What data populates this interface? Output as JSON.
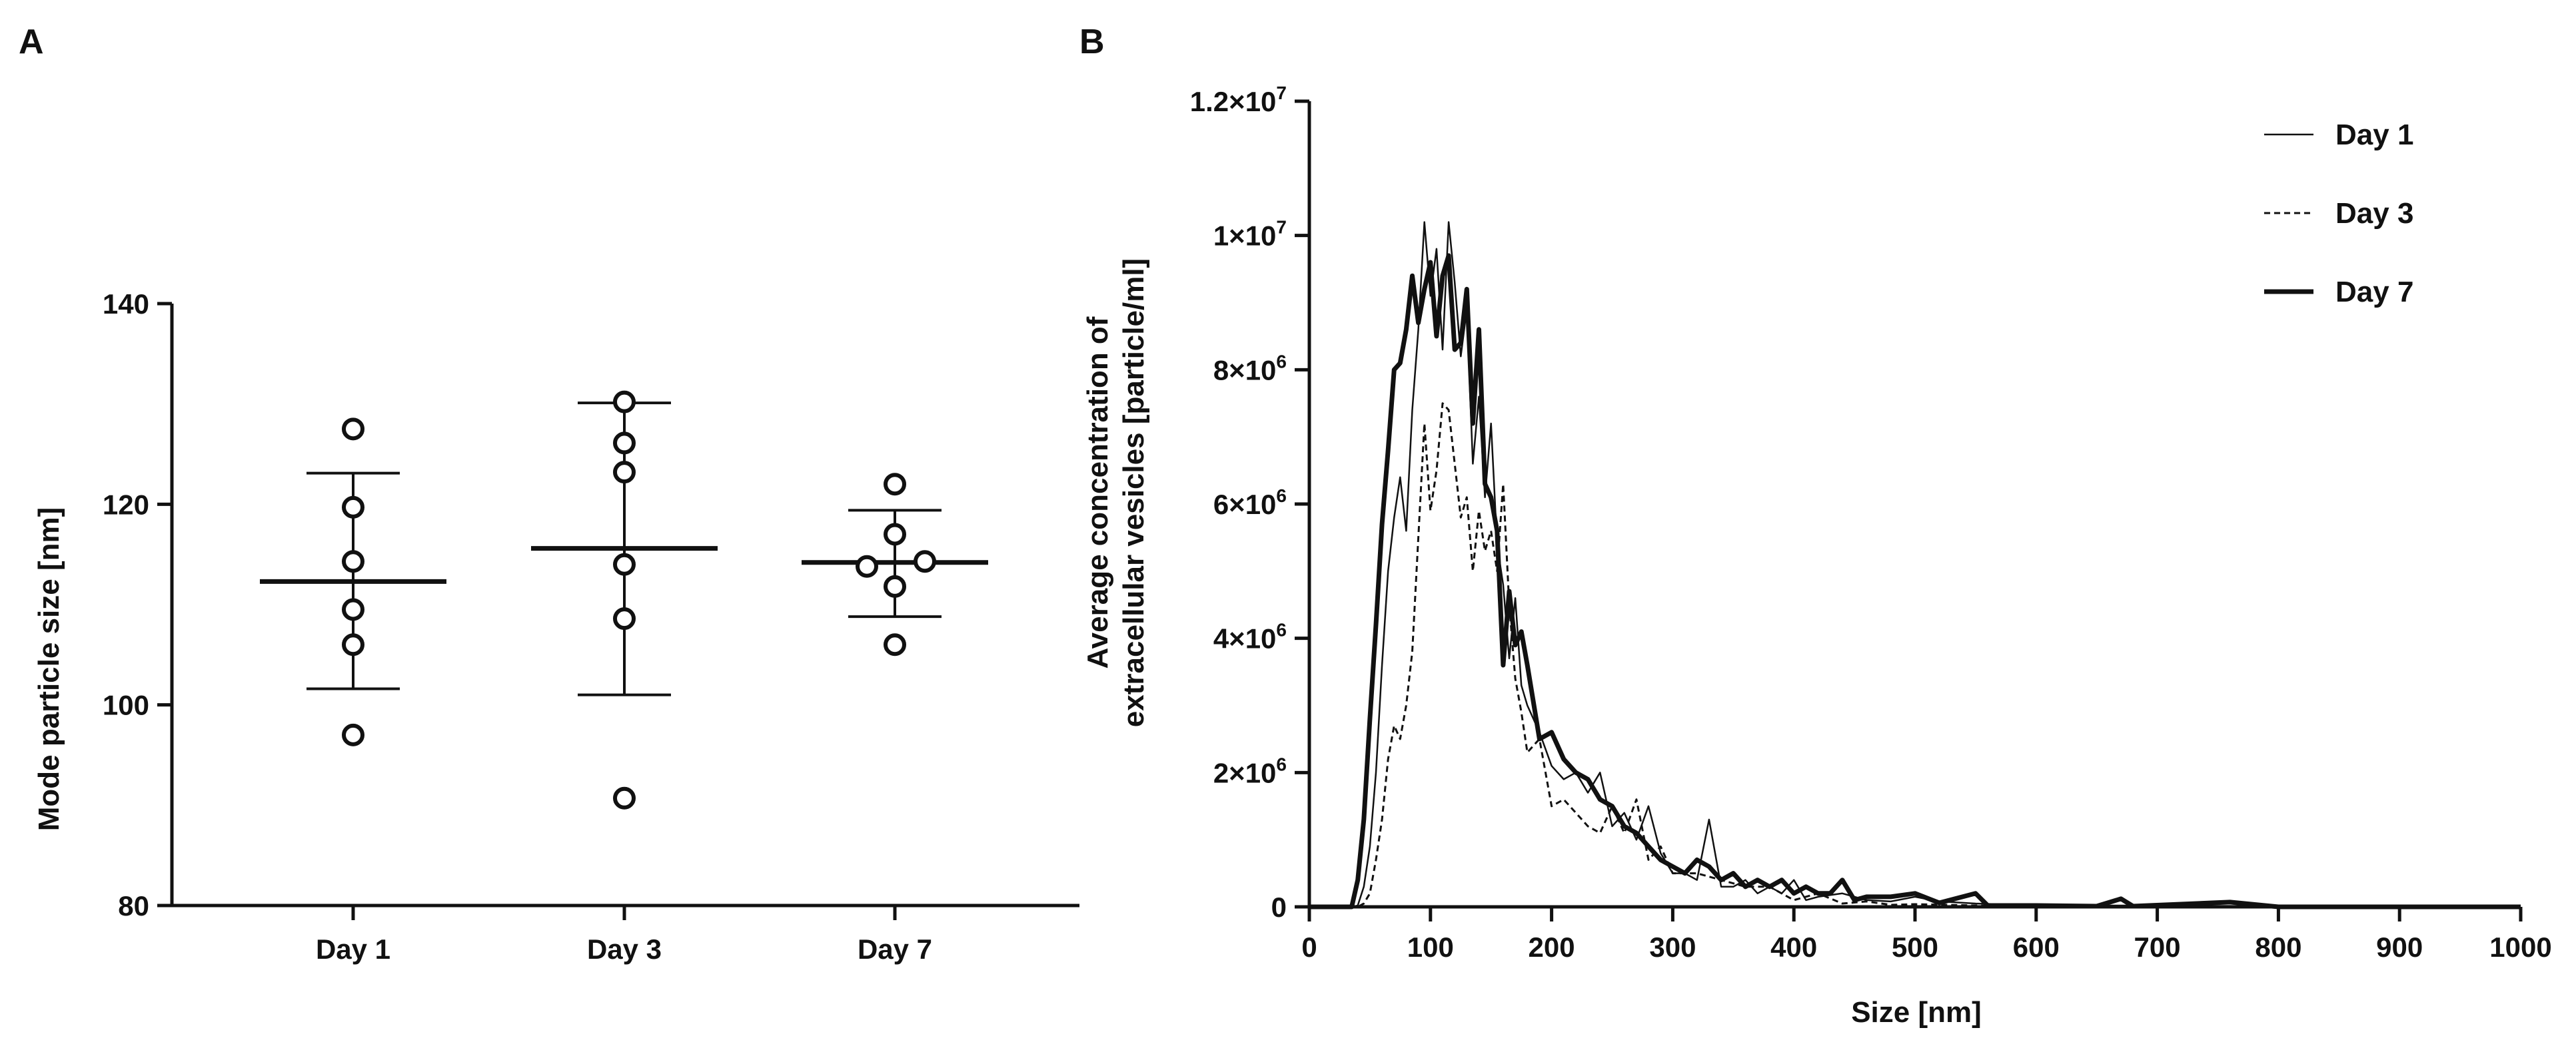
{
  "panel_labels": {
    "a": "A",
    "b": "B"
  },
  "chart_data": [
    {
      "type": "scatter",
      "panel": "A",
      "title": "",
      "xlabel": "",
      "ylabel": "Mode particle size [nm]",
      "ylim": [
        80,
        140
      ],
      "yticks": [
        "80",
        "100",
        "120",
        "140"
      ],
      "categories": [
        "Day 1",
        "Day 3",
        "Day 7"
      ],
      "series": [
        {
          "name": "Day 1",
          "points": [
            127.5,
            119.7,
            114.3,
            109.5,
            106.0,
            97.0
          ],
          "mean": 112.3,
          "sd_low": 101.6,
          "sd_high": 123.1
        },
        {
          "name": "Day 3",
          "points": [
            130.2,
            126.1,
            123.2,
            114.0,
            108.6,
            90.7
          ],
          "mean": 115.6,
          "sd_low": 101.0,
          "sd_high": 130.1
        },
        {
          "name": "Day 7",
          "points": [
            122.0,
            117.0,
            114.3,
            113.8,
            111.8,
            106.0
          ],
          "mean": 114.2,
          "sd_low": 108.8,
          "sd_high": 119.4
        }
      ]
    },
    {
      "type": "line",
      "panel": "B",
      "title": "",
      "xlabel": "Size [nm]",
      "ylabel_line1": "Average concentration of",
      "ylabel_line2": "extracellular vesicles [particle/ml]",
      "xlim": [
        0,
        1000
      ],
      "ylim": [
        0,
        12000000
      ],
      "xticks": [
        "0",
        "100",
        "200",
        "300",
        "400",
        "500",
        "600",
        "700",
        "800",
        "900",
        "1000"
      ],
      "yticks": [
        {
          "value": 0,
          "mantissa": "0",
          "exponent": ""
        },
        {
          "value": 2000000,
          "mantissa": "2×10",
          "exponent": "6"
        },
        {
          "value": 4000000,
          "mantissa": "4×10",
          "exponent": "6"
        },
        {
          "value": 6000000,
          "mantissa": "6×10",
          "exponent": "6"
        },
        {
          "value": 8000000,
          "mantissa": "8×10",
          "exponent": "6"
        },
        {
          "value": 10000000,
          "mantissa": "1×10",
          "exponent": "7"
        },
        {
          "value": 12000000,
          "mantissa": "1.2×10",
          "exponent": "7"
        }
      ],
      "legend_position": "top-right",
      "series": [
        {
          "name": "Day 1",
          "style": "thin",
          "x": [
            0,
            30,
            35,
            40,
            45,
            50,
            55,
            60,
            65,
            70,
            75,
            80,
            85,
            90,
            95,
            100,
            105,
            110,
            115,
            120,
            125,
            130,
            135,
            140,
            145,
            150,
            155,
            160,
            165,
            170,
            175,
            180,
            190,
            200,
            210,
            220,
            230,
            240,
            250,
            260,
            270,
            280,
            290,
            300,
            310,
            320,
            330,
            340,
            350,
            360,
            370,
            380,
            390,
            400,
            410,
            420,
            440,
            460,
            480,
            500,
            520,
            550,
            600,
            700,
            800,
            1000
          ],
          "y": [
            0,
            0,
            0,
            20000,
            300000,
            900000,
            2000000,
            3600000,
            5000000,
            5800000,
            6400000,
            5600000,
            7400000,
            8600000,
            10200000,
            9100000,
            9800000,
            8300000,
            10200000,
            9300000,
            8200000,
            8900000,
            6600000,
            7600000,
            6100000,
            7200000,
            5400000,
            4800000,
            3700000,
            4600000,
            3300000,
            3000000,
            2600000,
            2100000,
            1900000,
            2000000,
            1700000,
            2000000,
            1200000,
            1400000,
            1000000,
            1500000,
            800000,
            500000,
            500000,
            400000,
            1300000,
            300000,
            300000,
            400000,
            200000,
            300000,
            200000,
            400000,
            100000,
            150000,
            200000,
            100000,
            80000,
            150000,
            80000,
            50000,
            20000,
            20000,
            10000,
            0
          ]
        },
        {
          "name": "Day 3",
          "style": "dashed",
          "x": [
            0,
            40,
            45,
            50,
            55,
            60,
            65,
            70,
            75,
            80,
            85,
            90,
            95,
            100,
            105,
            110,
            115,
            120,
            125,
            130,
            135,
            140,
            145,
            150,
            155,
            160,
            165,
            170,
            175,
            180,
            190,
            200,
            210,
            220,
            230,
            240,
            250,
            260,
            270,
            280,
            290,
            300,
            320,
            340,
            360,
            380,
            400,
            420,
            440,
            460,
            480,
            500,
            550,
            600,
            700,
            1000
          ],
          "y": [
            0,
            0,
            50000,
            200000,
            700000,
            1300000,
            2200000,
            2700000,
            2500000,
            3000000,
            3800000,
            5500000,
            7200000,
            5900000,
            6500000,
            7500000,
            7400000,
            6600000,
            5800000,
            6100000,
            5000000,
            5900000,
            5300000,
            5600000,
            5000000,
            6300000,
            4500000,
            3400000,
            2900000,
            2300000,
            2500000,
            1500000,
            1600000,
            1400000,
            1200000,
            1100000,
            1500000,
            1100000,
            1600000,
            700000,
            900000,
            500000,
            500000,
            400000,
            300000,
            300000,
            100000,
            200000,
            50000,
            80000,
            30000,
            40000,
            20000,
            10000,
            0,
            0
          ]
        },
        {
          "name": "Day 7",
          "style": "thick",
          "x": [
            0,
            30,
            35,
            40,
            45,
            50,
            55,
            60,
            65,
            70,
            75,
            80,
            85,
            90,
            95,
            100,
            105,
            110,
            115,
            120,
            125,
            130,
            135,
            140,
            145,
            150,
            155,
            160,
            165,
            170,
            175,
            180,
            190,
            200,
            210,
            220,
            230,
            240,
            250,
            260,
            270,
            280,
            290,
            300,
            310,
            320,
            330,
            340,
            350,
            360,
            370,
            380,
            390,
            400,
            410,
            420,
            430,
            440,
            450,
            460,
            480,
            500,
            520,
            550,
            560,
            600,
            650,
            670,
            680,
            760,
            800,
            1000
          ],
          "y": [
            0,
            0,
            0,
            400000,
            1300000,
            2800000,
            4200000,
            5700000,
            6800000,
            8000000,
            8100000,
            8600000,
            9400000,
            8700000,
            9200000,
            9600000,
            8500000,
            9400000,
            9700000,
            8300000,
            8400000,
            9200000,
            7200000,
            8600000,
            6300000,
            6100000,
            5600000,
            3600000,
            4700000,
            3900000,
            4100000,
            3600000,
            2500000,
            2600000,
            2200000,
            2000000,
            1900000,
            1600000,
            1500000,
            1200000,
            1100000,
            900000,
            700000,
            600000,
            500000,
            700000,
            600000,
            400000,
            500000,
            300000,
            400000,
            300000,
            400000,
            200000,
            300000,
            200000,
            200000,
            400000,
            100000,
            150000,
            150000,
            200000,
            60000,
            200000,
            20000,
            20000,
            10000,
            120000,
            10000,
            70000,
            0,
            0
          ]
        }
      ]
    }
  ]
}
